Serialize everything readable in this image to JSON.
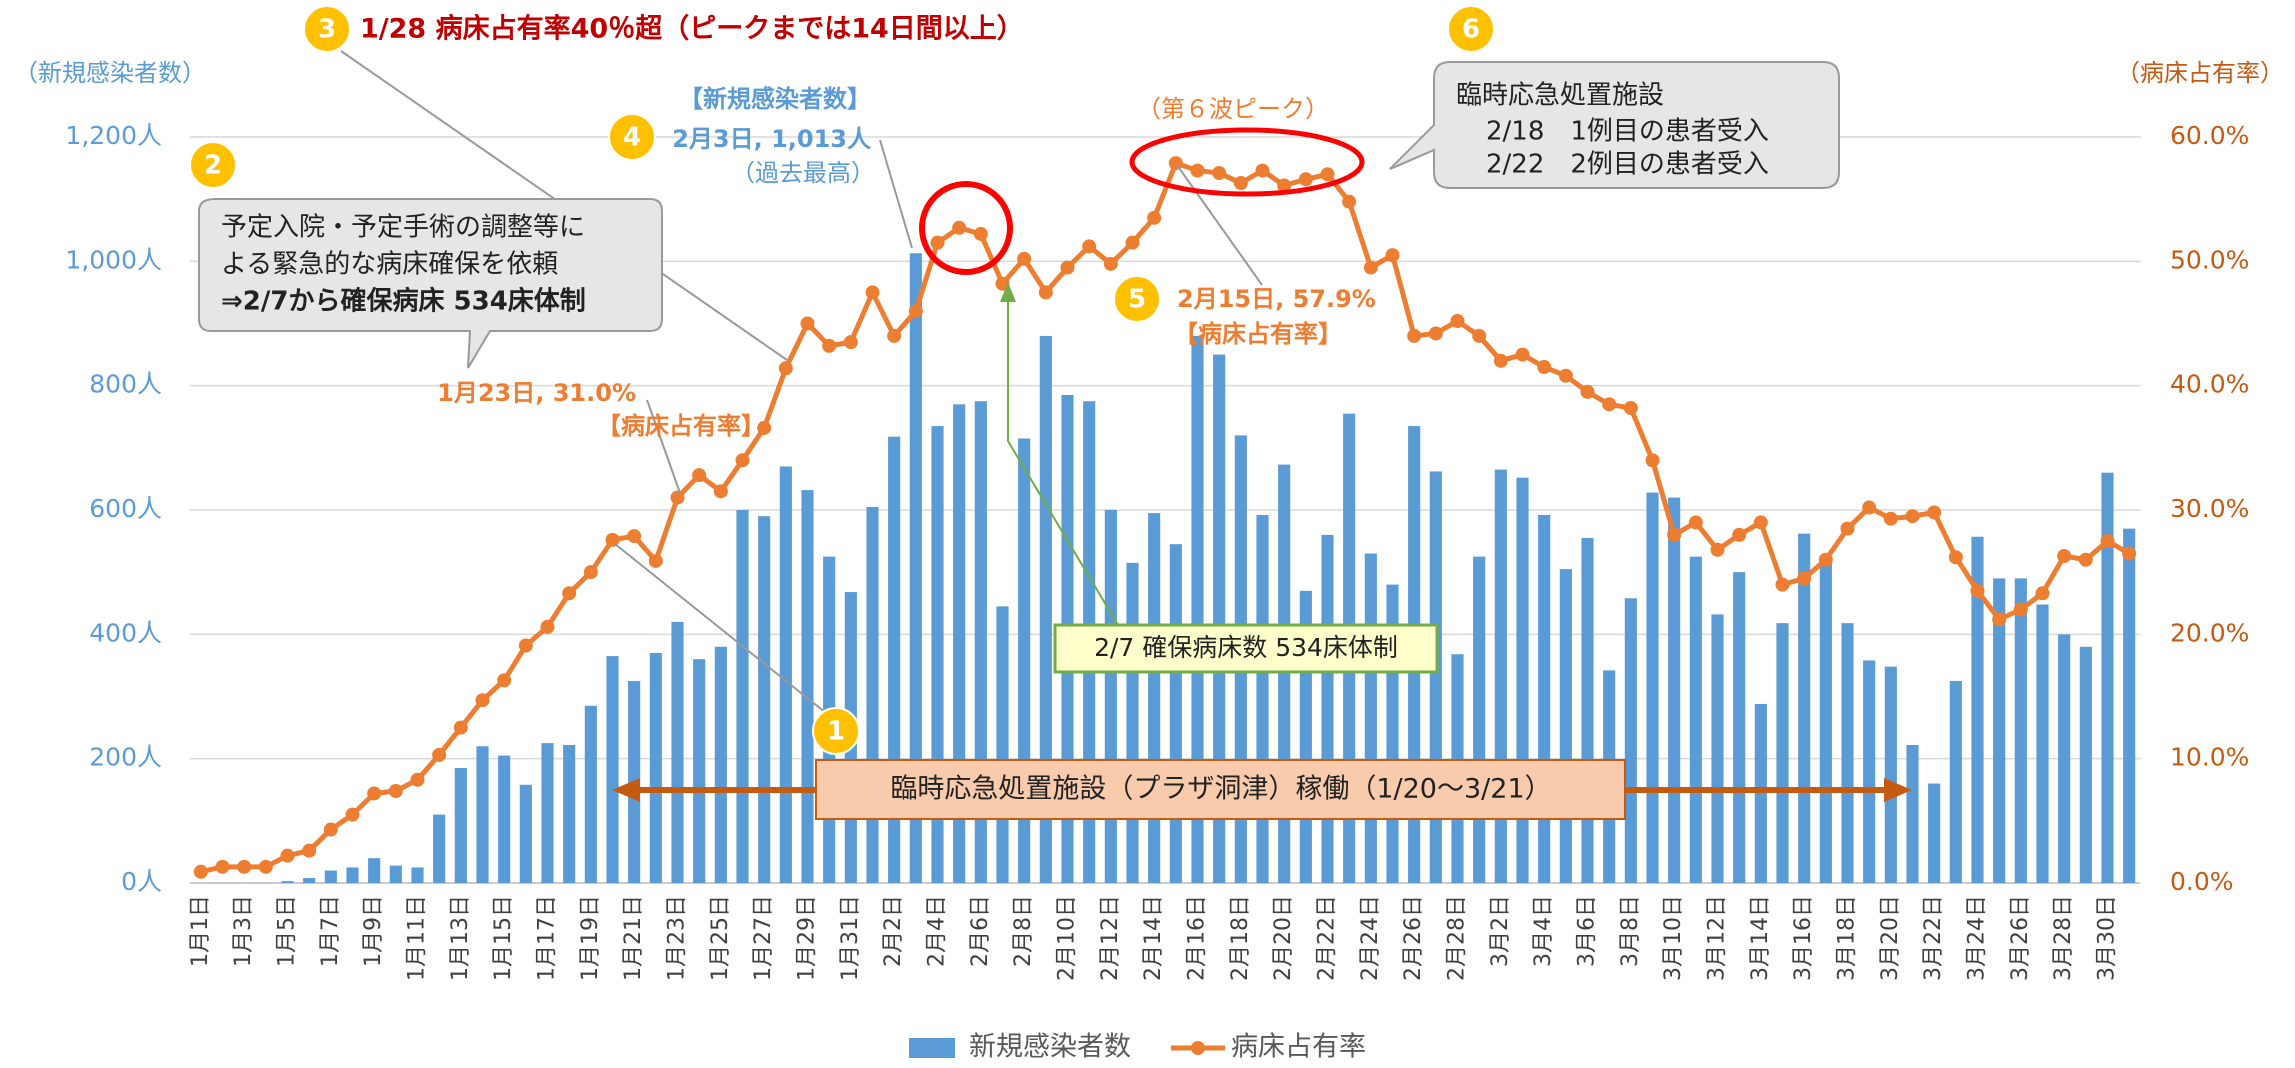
{
  "chart_data": {
    "type": "combo",
    "ylabel": "（新規感染者数）",
    "y2label": "（病床占有率）",
    "categories": [
      "1月1日",
      null,
      "1月3日",
      null,
      "1月5日",
      null,
      "1月7日",
      null,
      "1月9日",
      null,
      "1月11日",
      null,
      "1月13日",
      null,
      "1月15日",
      null,
      "1月17日",
      null,
      "1月19日",
      null,
      "1月21日",
      null,
      "1月23日",
      null,
      "1月25日",
      null,
      "1月27日",
      null,
      "1月29日",
      null,
      "1月31日",
      null,
      "2月2日",
      null,
      "2月4日",
      null,
      "2月6日",
      null,
      "2月8日",
      null,
      "2月10日",
      null,
      "2月12日",
      null,
      "2月14日",
      null,
      "2月16日",
      null,
      "2月18日",
      null,
      "2月20日",
      null,
      "2月22日",
      null,
      "2月24日",
      null,
      "2月26日",
      null,
      "2月28日",
      null,
      "3月2日",
      null,
      "3月4日",
      null,
      "3月6日",
      null,
      "3月8日",
      null,
      "3月10日",
      null,
      "3月12日",
      null,
      "3月14日",
      null,
      "3月16日",
      null,
      "3月18日",
      null,
      "3月20日",
      null,
      "3月22日",
      null,
      "3月24日",
      null,
      "3月26日",
      null,
      "3月28日",
      null,
      "3月30日",
      null
    ],
    "series": [
      {
        "name": "新規感染者数",
        "type": "bar",
        "color": "#5b9bd5",
        "values": [
          0,
          0,
          0,
          0,
          3,
          8,
          20,
          25,
          40,
          28,
          25,
          110,
          185,
          220,
          205,
          158,
          225,
          222,
          285,
          365,
          325,
          370,
          420,
          360,
          380,
          600,
          590,
          670,
          632,
          525,
          468,
          605,
          718,
          1013,
          735,
          770,
          775,
          445,
          715,
          880,
          785,
          775,
          600,
          515,
          595,
          545,
          880,
          850,
          720,
          592,
          673,
          470,
          560,
          755,
          530,
          480,
          735,
          662,
          368,
          525,
          665,
          652,
          592,
          505,
          555,
          342,
          458,
          628,
          620,
          525,
          432,
          500,
          288,
          418,
          562,
          520,
          418,
          358,
          348,
          222,
          160,
          325,
          557,
          490,
          490,
          448,
          400,
          380,
          660,
          570
        ]
      },
      {
        "name": "病床占有率",
        "type": "line",
        "axis": "y2",
        "color": "#ed7d31",
        "values": [
          0.9,
          1.3,
          1.3,
          1.3,
          2.2,
          2.6,
          4.3,
          5.5,
          7.2,
          7.4,
          8.3,
          10.3,
          12.5,
          14.7,
          16.3,
          19.1,
          20.6,
          23.3,
          25.0,
          27.6,
          27.9,
          25.9,
          31.0,
          32.8,
          31.5,
          34.0,
          36.6,
          41.4,
          45.0,
          43.2,
          43.5,
          47.5,
          44.0,
          46.0,
          51.5,
          52.7,
          52.2,
          48.2,
          50.2,
          47.5,
          49.5,
          51.2,
          49.8,
          51.5,
          53.5,
          57.9,
          57.3,
          57.1,
          56.3,
          57.3,
          56.1,
          56.6,
          57.0,
          54.8,
          49.5,
          50.5,
          44.0,
          44.2,
          45.2,
          44.0,
          42.0,
          42.5,
          41.5,
          40.8,
          39.5,
          38.5,
          38.2,
          34.0,
          28.0,
          29.0,
          26.8,
          28.0,
          29.0,
          24.0,
          24.5,
          26.0,
          28.5,
          30.2,
          29.3,
          29.5,
          29.8,
          26.2,
          23.5,
          21.2,
          22.0,
          23.3,
          26.3,
          26.0,
          27.5,
          26.5
        ]
      }
    ],
    "ylim": [
      0,
      1200
    ],
    "yticks": [
      {
        "value": 0,
        "label": "0人"
      },
      {
        "value": 200,
        "label": "200人"
      },
      {
        "value": 400,
        "label": "400人"
      },
      {
        "value": 600,
        "label": "600人"
      },
      {
        "value": 800,
        "label": "800人"
      },
      {
        "value": 1000,
        "label": "1,000人"
      },
      {
        "value": 1200,
        "label": "1,200人"
      }
    ],
    "y2lim": [
      0,
      60
    ],
    "y2ticks": [
      {
        "value": 0,
        "label": "0.0%"
      },
      {
        "value": 10,
        "label": "10.0%"
      },
      {
        "value": 20,
        "label": "20.0%"
      },
      {
        "value": 30,
        "label": "30.0%"
      },
      {
        "value": 40,
        "label": "40.0%"
      },
      {
        "value": 50,
        "label": "50.0%"
      },
      {
        "value": 60,
        "label": "60.0%"
      }
    ],
    "grid": true,
    "legend": "bottom",
    "annotations": {
      "badges": [
        "1",
        "2",
        "3",
        "4",
        "5",
        "6"
      ],
      "peak_40": "1/28 病床占有率40％超（ピークまでは14日間以上）",
      "cases_head": "【新規感染者数】",
      "cases_value": "2月3日, 1,013人",
      "cases_note": "（過去最高）",
      "request_box": [
        "予定入院・予定手術の調整等に",
        "よる緊急的な病床確保を依頼",
        "⇒2/7から確保病床 534床体制"
      ],
      "jan23_value": "1月23日, 31.0%",
      "jan23_head": "【病床占有率】",
      "wave_peak": "（第６波ピーク）",
      "feb15_value": "2月15日, 57.9%",
      "feb15_head": "【病床占有率】",
      "facility_box": [
        "臨時応急処置施設",
        "2/18　1例目の患者受入",
        "2/22　2例目の患者受入"
      ],
      "beds_box": "2/7 確保病床数 534床体制",
      "plaza_box": "臨時応急処置施設（プラザ洞津）稼働（1/20～3/21）"
    }
  }
}
